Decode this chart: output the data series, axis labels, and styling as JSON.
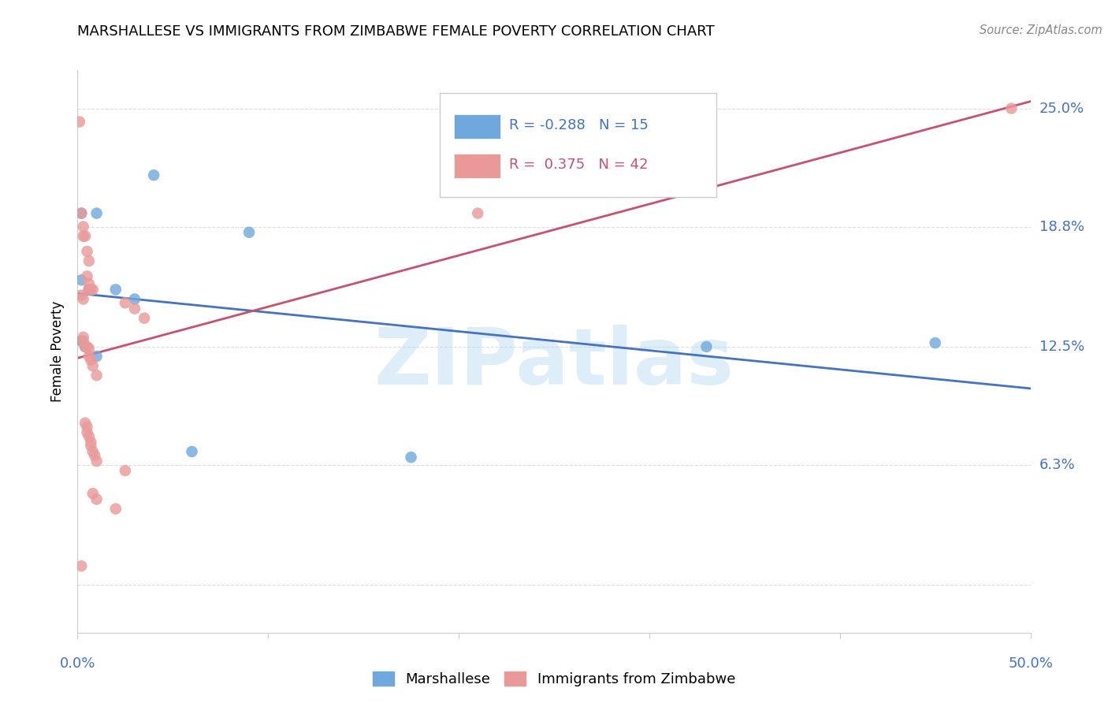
{
  "title": "MARSHALLESE VS IMMIGRANTS FROM ZIMBABWE FEMALE POVERTY CORRELATION CHART",
  "source": "Source: ZipAtlas.com",
  "ylabel": "Female Poverty",
  "yticks": [
    0.0,
    0.063,
    0.125,
    0.188,
    0.25
  ],
  "ytick_labels": [
    "",
    "6.3%",
    "12.5%",
    "18.8%",
    "25.0%"
  ],
  "xlim": [
    0.0,
    0.5
  ],
  "ylim": [
    -0.025,
    0.27
  ],
  "watermark": "ZIPatlas",
  "blue_R": "-0.288",
  "blue_N": "15",
  "pink_R": "0.375",
  "pink_N": "42",
  "blue_color": "#6fa8dc",
  "pink_color": "#ea9999",
  "blue_line_color": "#4472c4",
  "pink_line_color": "#c9506e",
  "blue_points": [
    [
      0.002,
      0.195
    ],
    [
      0.01,
      0.195
    ],
    [
      0.04,
      0.215
    ],
    [
      0.09,
      0.185
    ],
    [
      0.002,
      0.16
    ],
    [
      0.006,
      0.155
    ],
    [
      0.02,
      0.155
    ],
    [
      0.03,
      0.15
    ],
    [
      0.002,
      0.128
    ],
    [
      0.004,
      0.125
    ],
    [
      0.01,
      0.12
    ],
    [
      0.06,
      0.07
    ],
    [
      0.175,
      0.067
    ],
    [
      0.33,
      0.125
    ],
    [
      0.45,
      0.127
    ]
  ],
  "pink_points": [
    [
      0.001,
      0.243
    ],
    [
      0.002,
      0.195
    ],
    [
      0.003,
      0.188
    ],
    [
      0.003,
      0.183
    ],
    [
      0.004,
      0.183
    ],
    [
      0.005,
      0.175
    ],
    [
      0.006,
      0.17
    ],
    [
      0.005,
      0.162
    ],
    [
      0.006,
      0.158
    ],
    [
      0.006,
      0.155
    ],
    [
      0.007,
      0.155
    ],
    [
      0.008,
      0.155
    ],
    [
      0.002,
      0.152
    ],
    [
      0.003,
      0.15
    ],
    [
      0.025,
      0.148
    ],
    [
      0.03,
      0.145
    ],
    [
      0.035,
      0.14
    ],
    [
      0.003,
      0.13
    ],
    [
      0.003,
      0.128
    ],
    [
      0.004,
      0.125
    ],
    [
      0.005,
      0.125
    ],
    [
      0.006,
      0.124
    ],
    [
      0.006,
      0.12
    ],
    [
      0.007,
      0.118
    ],
    [
      0.008,
      0.115
    ],
    [
      0.01,
      0.11
    ],
    [
      0.004,
      0.085
    ],
    [
      0.005,
      0.083
    ],
    [
      0.005,
      0.08
    ],
    [
      0.006,
      0.078
    ],
    [
      0.007,
      0.075
    ],
    [
      0.007,
      0.073
    ],
    [
      0.008,
      0.07
    ],
    [
      0.009,
      0.068
    ],
    [
      0.01,
      0.065
    ],
    [
      0.025,
      0.06
    ],
    [
      0.008,
      0.048
    ],
    [
      0.01,
      0.045
    ],
    [
      0.02,
      0.04
    ],
    [
      0.002,
      0.01
    ],
    [
      0.21,
      0.195
    ],
    [
      0.49,
      0.25
    ]
  ]
}
